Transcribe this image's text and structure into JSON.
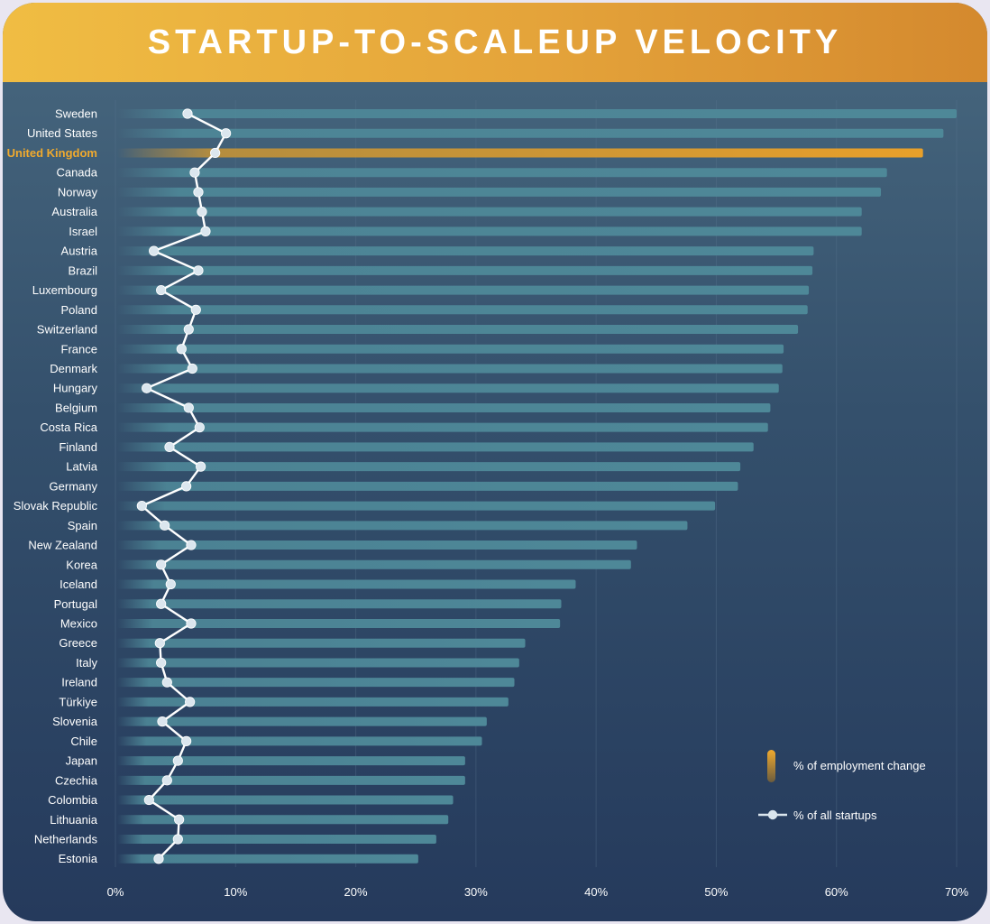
{
  "title": "STARTUP-TO-SCALEUP VELOCITY",
  "chart_data": {
    "type": "bar",
    "orientation": "horizontal",
    "highlight_category": "United Kingdom",
    "categories": [
      "Sweden",
      "United States",
      "United Kingdom",
      "Canada",
      "Norway",
      "Australia",
      "Israel",
      "Austria",
      "Brazil",
      "Luxembourg",
      "Poland",
      "Switzerland",
      "France",
      "Denmark",
      "Hungary",
      "Belgium",
      "Costa Rica",
      "Finland",
      "Latvia",
      "Germany",
      "Slovak Republic",
      "Spain",
      "New Zealand",
      "Korea",
      "Iceland",
      "Portugal",
      "Mexico",
      "Greece",
      "Italy",
      "Ireland",
      "Türkiye",
      "Slovenia",
      "Chile",
      "Japan",
      "Czechia",
      "Colombia",
      "Lithuania",
      "Netherlands",
      "Estonia"
    ],
    "series": [
      {
        "name": "% of employment change",
        "type": "bar",
        "values": [
          70.0,
          68.9,
          67.2,
          64.2,
          63.7,
          62.1,
          62.1,
          58.1,
          58.0,
          57.7,
          57.6,
          56.8,
          55.6,
          55.5,
          55.2,
          54.5,
          54.3,
          53.1,
          52.0,
          51.8,
          49.9,
          47.6,
          43.4,
          42.9,
          38.3,
          37.1,
          37.0,
          34.1,
          33.6,
          33.2,
          32.7,
          30.9,
          30.5,
          29.1,
          29.1,
          28.1,
          27.7,
          26.7,
          25.2
        ]
      },
      {
        "name": "% of all startups",
        "type": "line",
        "values": [
          6.0,
          9.2,
          8.3,
          6.6,
          6.9,
          7.2,
          7.5,
          3.2,
          6.9,
          3.8,
          6.7,
          6.1,
          5.5,
          6.4,
          2.6,
          6.1,
          7.0,
          4.5,
          7.1,
          5.9,
          2.2,
          4.1,
          6.3,
          3.8,
          4.6,
          3.8,
          6.3,
          3.7,
          3.8,
          4.3,
          6.2,
          3.9,
          5.9,
          5.2,
          4.3,
          2.8,
          5.3,
          5.2,
          3.6
        ]
      }
    ],
    "x_axis": {
      "min": 0,
      "max": 70,
      "ticks": [
        0,
        10,
        20,
        30,
        40,
        50,
        60,
        70
      ],
      "tick_labels": [
        "0%",
        "10%",
        "20%",
        "30%",
        "40%",
        "50%",
        "60%",
        "70%"
      ]
    },
    "legend": {
      "position": "bottom-right",
      "items": [
        "% of employment change",
        "% of all startups"
      ]
    },
    "colors": {
      "bar": "#4e8898",
      "highlight_bar": "#e2a030",
      "line": "#ffffff",
      "point": "#dbe6ee",
      "highlight_label": "#f0aa2e",
      "label": "#ffffff",
      "grid": "#5a7590"
    }
  }
}
